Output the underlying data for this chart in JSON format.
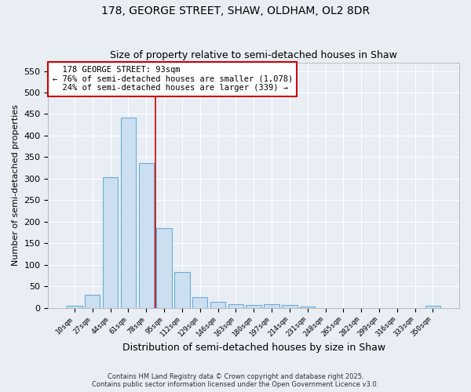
{
  "title1": "178, GEORGE STREET, SHAW, OLDHAM, OL2 8DR",
  "title2": "Size of property relative to semi-detached houses in Shaw",
  "xlabel": "Distribution of semi-detached houses by size in Shaw",
  "ylabel": "Number of semi-detached properties",
  "categories": [
    "10sqm",
    "27sqm",
    "44sqm",
    "61sqm",
    "78sqm",
    "95sqm",
    "112sqm",
    "129sqm",
    "146sqm",
    "163sqm",
    "180sqm",
    "197sqm",
    "214sqm",
    "231sqm",
    "248sqm",
    "265sqm",
    "282sqm",
    "299sqm",
    "316sqm",
    "333sqm",
    "350sqm"
  ],
  "values": [
    5,
    31,
    304,
    441,
    336,
    185,
    83,
    25,
    13,
    8,
    6,
    9,
    6,
    3,
    0,
    0,
    0,
    0,
    0,
    0,
    4
  ],
  "bar_color": "#ccdff0",
  "bar_edge_color": "#6aaed6",
  "property_label": "178 GEORGE STREET: 93sqm",
  "pct_smaller": 76,
  "pct_smaller_count": "1,078",
  "pct_larger": 24,
  "pct_larger_count": "339",
  "vline_x": 4.5,
  "vline_color": "#cc0000",
  "ylim": [
    0,
    570
  ],
  "yticks": [
    0,
    50,
    100,
    150,
    200,
    250,
    300,
    350,
    400,
    450,
    500,
    550
  ],
  "annotation_box_color": "#cc0000",
  "footer1": "Contains HM Land Registry data © Crown copyright and database right 2025.",
  "footer2": "Contains public sector information licensed under the Open Government Licence v3.0.",
  "bg_color": "#e8eef4",
  "grid_color": "#ffffff"
}
